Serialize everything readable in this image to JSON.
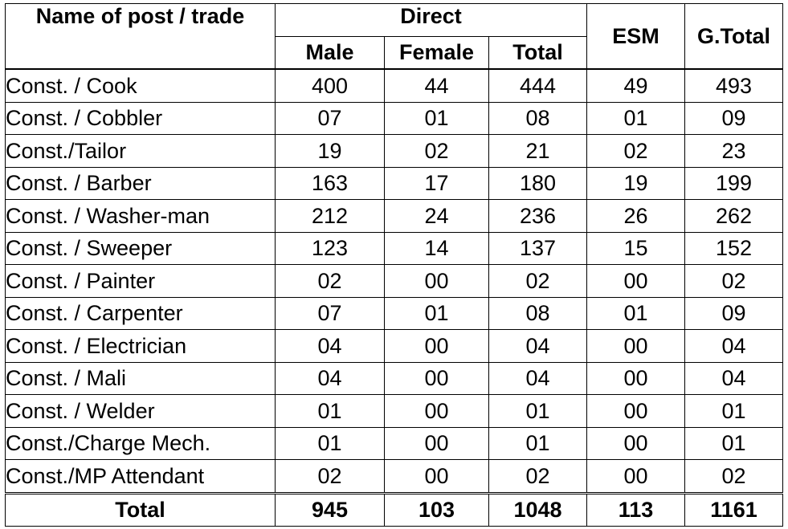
{
  "headers": {
    "post": "Name of post / trade",
    "direct": "Direct",
    "male": "Male",
    "female": "Female",
    "total": "Total",
    "esm": "ESM",
    "gtotal": "G.Total"
  },
  "rows": [
    {
      "name": "Const. / Cook",
      "male": "400",
      "female": "44",
      "total": "444",
      "esm": "49",
      "gtotal": "493"
    },
    {
      "name": "Const. / Cobbler",
      "male": "07",
      "female": "01",
      "total": "08",
      "esm": "01",
      "gtotal": "09"
    },
    {
      "name": "Const./Tailor",
      "male": "19",
      "female": "02",
      "total": "21",
      "esm": "02",
      "gtotal": "23"
    },
    {
      "name": "Const. / Barber",
      "male": "163",
      "female": "17",
      "total": "180",
      "esm": "19",
      "gtotal": "199"
    },
    {
      "name": "Const. / Washer-man",
      "male": "212",
      "female": "24",
      "total": "236",
      "esm": "26",
      "gtotal": "262"
    },
    {
      "name": "Const. / Sweeper",
      "male": "123",
      "female": "14",
      "total": "137",
      "esm": "15",
      "gtotal": "152"
    },
    {
      "name": "Const. / Painter",
      "male": "02",
      "female": "00",
      "total": "02",
      "esm": "00",
      "gtotal": "02"
    },
    {
      "name": "Const. / Carpenter",
      "male": "07",
      "female": "01",
      "total": "08",
      "esm": "01",
      "gtotal": "09"
    },
    {
      "name": "Const. / Electrician",
      "male": "04",
      "female": "00",
      "total": "04",
      "esm": "00",
      "gtotal": "04"
    },
    {
      "name": "Const. / Mali",
      "male": "04",
      "female": "00",
      "total": "04",
      "esm": "00",
      "gtotal": "04"
    },
    {
      "name": "Const. / Welder",
      "male": "01",
      "female": "00",
      "total": "01",
      "esm": "00",
      "gtotal": "01"
    },
    {
      "name": "Const./Charge Mech.",
      "male": "01",
      "female": "00",
      "total": "01",
      "esm": "00",
      "gtotal": "01"
    },
    {
      "name": "Const./MP Attendant",
      "male": "02",
      "female": "00",
      "total": "02",
      "esm": "00",
      "gtotal": "02"
    }
  ],
  "totals": {
    "label": "Total",
    "male": "945",
    "female": "103",
    "total": "1048",
    "esm": "113",
    "gtotal": "1161"
  }
}
